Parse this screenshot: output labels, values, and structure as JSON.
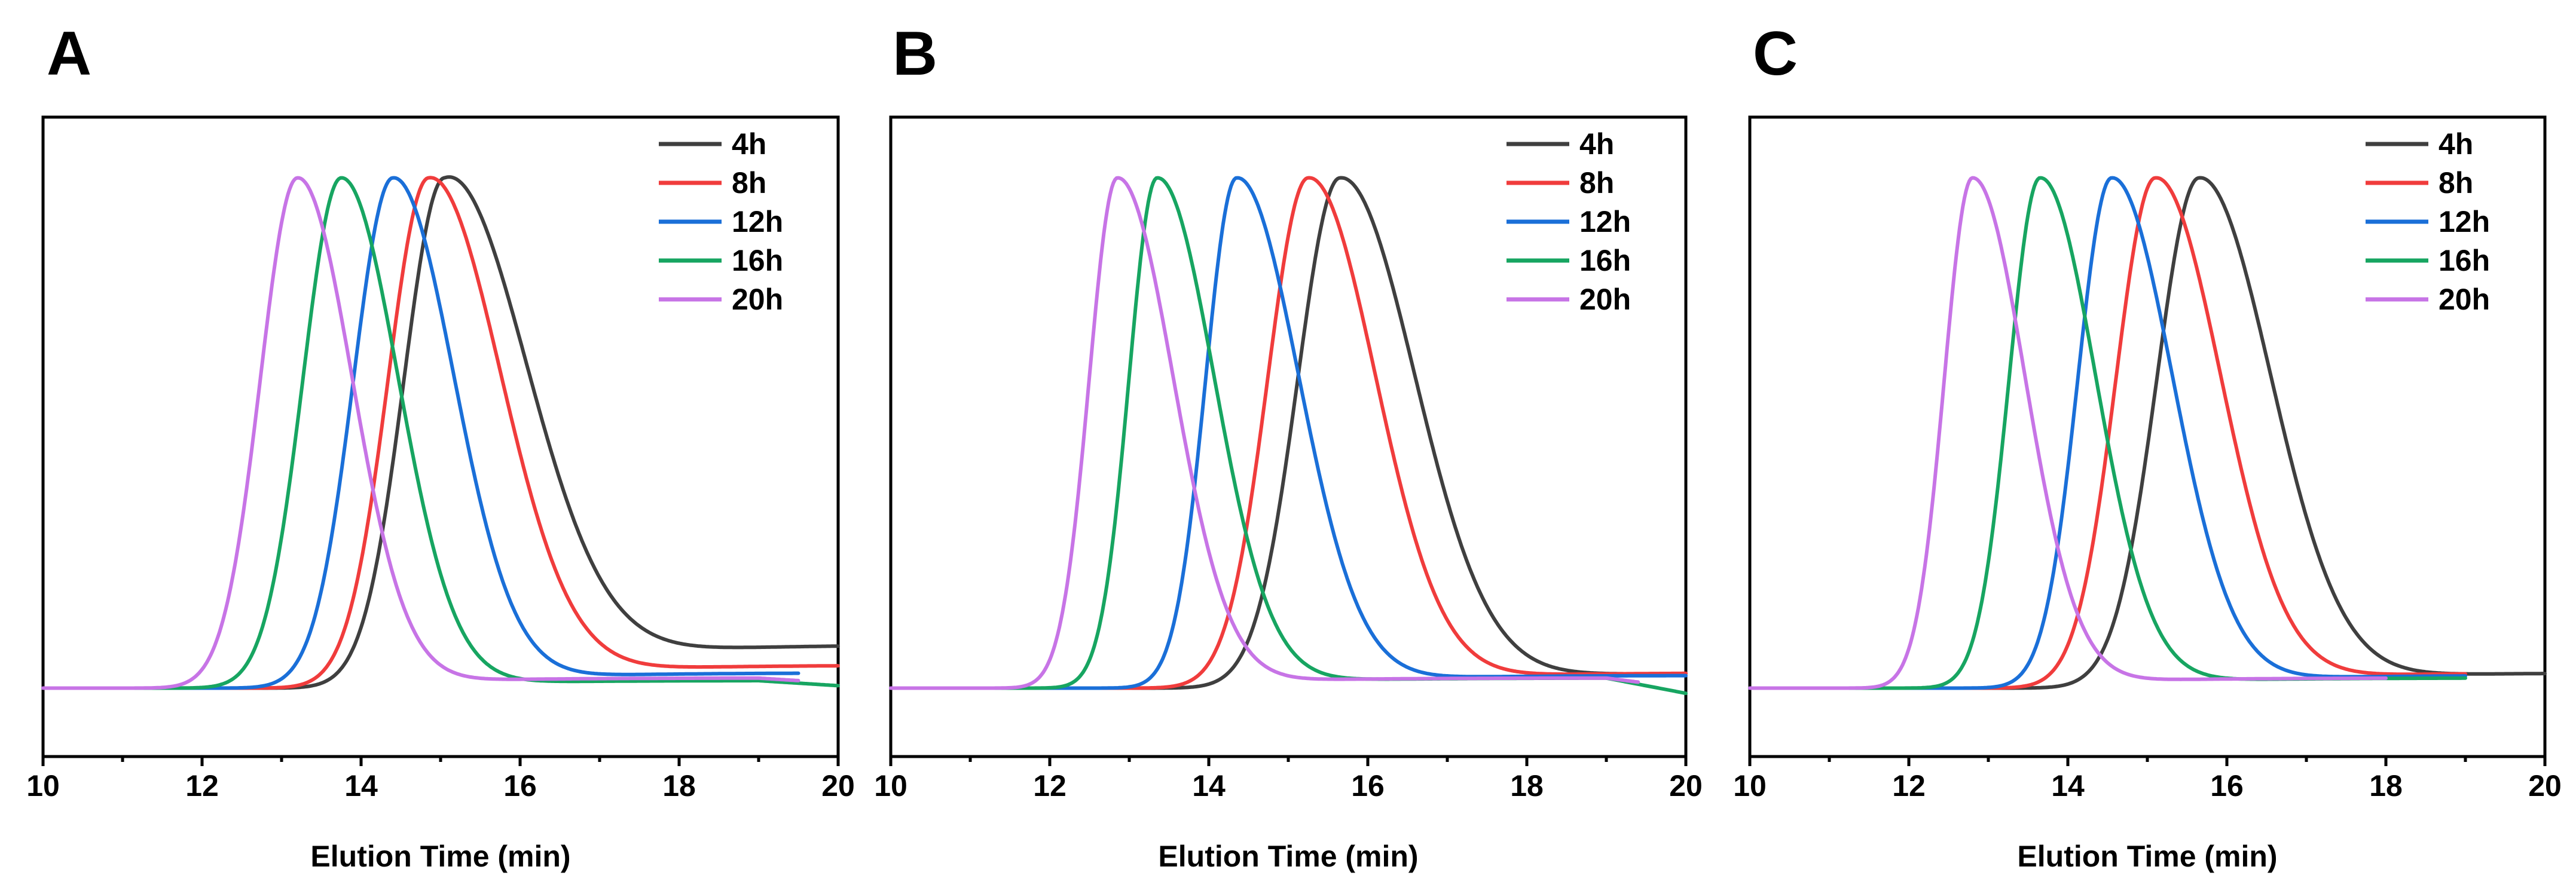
{
  "chart_data": [
    {
      "type": "line",
      "title": "A",
      "xlabel": "Elution Time (min)",
      "ylabel": "",
      "xlim": [
        10,
        20
      ],
      "ylim": [
        0,
        1.1
      ],
      "xticks": [
        10,
        12,
        14,
        16,
        18,
        20
      ],
      "legend_position": "top-right",
      "x_end": [
        20,
        20,
        19.5,
        20,
        19.5
      ],
      "series": [
        {
          "name": "4h",
          "color": "#3f3f3f",
          "peak": 15.05,
          "height": 1.0,
          "width_left": 0.72,
          "tail": 0.085,
          "tail_rate": 0.7,
          "width_right": 1.3,
          "end_offset": 0.0
        },
        {
          "name": "8h",
          "color": "#f03c3c",
          "peak": 14.85,
          "height": 1.0,
          "width_left": 0.72,
          "tail": 0.045,
          "tail_rate": 0.7,
          "width_right": 1.15,
          "end_offset": 0.0
        },
        {
          "name": "12h",
          "color": "#1a6fd8",
          "peak": 14.4,
          "height": 1.0,
          "width_left": 0.7,
          "tail": 0.03,
          "tail_rate": 0.7,
          "width_right": 0.98,
          "end_offset": 0.0
        },
        {
          "name": "16h",
          "color": "#17a561",
          "peak": 13.75,
          "height": 1.0,
          "width_left": 0.68,
          "tail": 0.015,
          "tail_rate": 0.7,
          "width_right": 0.92,
          "end_offset": -0.01
        },
        {
          "name": "20h",
          "color": "#c774e6",
          "peak": 13.2,
          "height": 1.0,
          "width_left": 0.66,
          "tail": 0.02,
          "tail_rate": 0.7,
          "width_right": 0.88,
          "end_offset": -0.01
        }
      ]
    },
    {
      "type": "line",
      "title": "B",
      "xlabel": "Elution Time (min)",
      "ylabel": "",
      "xlim": [
        10,
        20
      ],
      "ylim": [
        0,
        1.1
      ],
      "xticks": [
        10,
        12,
        14,
        16,
        18,
        20
      ],
      "legend_position": "top-right",
      "x_end": [
        20,
        20,
        20,
        20,
        19.4
      ],
      "series": [
        {
          "name": "4h",
          "color": "#3f3f3f",
          "peak": 15.65,
          "height": 1.0,
          "width_left": 0.75,
          "tail": 0.03,
          "tail_rate": 0.7,
          "width_right": 1.2,
          "end_offset": 0.0
        },
        {
          "name": "8h",
          "color": "#f03c3c",
          "peak": 15.25,
          "height": 1.0,
          "width_left": 0.72,
          "tail": 0.03,
          "tail_rate": 0.7,
          "width_right": 1.08,
          "end_offset": 0.0
        },
        {
          "name": "12h",
          "color": "#1a6fd8",
          "peak": 14.35,
          "height": 1.0,
          "width_left": 0.55,
          "tail": 0.025,
          "tail_rate": 0.7,
          "width_right": 1.0,
          "end_offset": 0.0
        },
        {
          "name": "16h",
          "color": "#17a561",
          "peak": 13.35,
          "height": 1.0,
          "width_left": 0.5,
          "tail": 0.02,
          "tail_rate": 0.7,
          "width_right": 0.92,
          "end_offset": -0.03
        },
        {
          "name": "20h",
          "color": "#c774e6",
          "peak": 12.85,
          "height": 1.0,
          "width_left": 0.5,
          "tail": 0.02,
          "tail_rate": 0.7,
          "width_right": 0.9,
          "end_offset": -0.02
        }
      ]
    },
    {
      "type": "line",
      "title": "C",
      "xlabel": "Elution Time (min)",
      "ylabel": "",
      "xlim": [
        10,
        20
      ],
      "ylim": [
        0,
        1.1
      ],
      "xticks": [
        10,
        12,
        14,
        16,
        18,
        20
      ],
      "legend_position": "top-right",
      "x_end": [
        20,
        19,
        19,
        19,
        18
      ],
      "series": [
        {
          "name": "4h",
          "color": "#3f3f3f",
          "peak": 15.65,
          "height": 1.0,
          "width_left": 0.75,
          "tail": 0.03,
          "tail_rate": 0.7,
          "width_right": 1.15,
          "end_offset": 0.0
        },
        {
          "name": "8h",
          "color": "#f03c3c",
          "peak": 15.1,
          "height": 1.0,
          "width_left": 0.7,
          "tail": 0.03,
          "tail_rate": 0.7,
          "width_right": 1.05,
          "end_offset": 0.0
        },
        {
          "name": "12h",
          "color": "#1a6fd8",
          "peak": 14.55,
          "height": 1.0,
          "width_left": 0.6,
          "tail": 0.025,
          "tail_rate": 0.7,
          "width_right": 0.98,
          "end_offset": 0.0
        },
        {
          "name": "16h",
          "color": "#17a561",
          "peak": 13.65,
          "height": 1.0,
          "width_left": 0.55,
          "tail": 0.02,
          "tail_rate": 0.7,
          "width_right": 0.9,
          "end_offset": 0.0
        },
        {
          "name": "20h",
          "color": "#c774e6",
          "peak": 12.8,
          "height": 1.0,
          "width_left": 0.5,
          "tail": 0.02,
          "tail_rate": 0.7,
          "width_right": 0.85,
          "end_offset": 0.0
        }
      ]
    }
  ]
}
